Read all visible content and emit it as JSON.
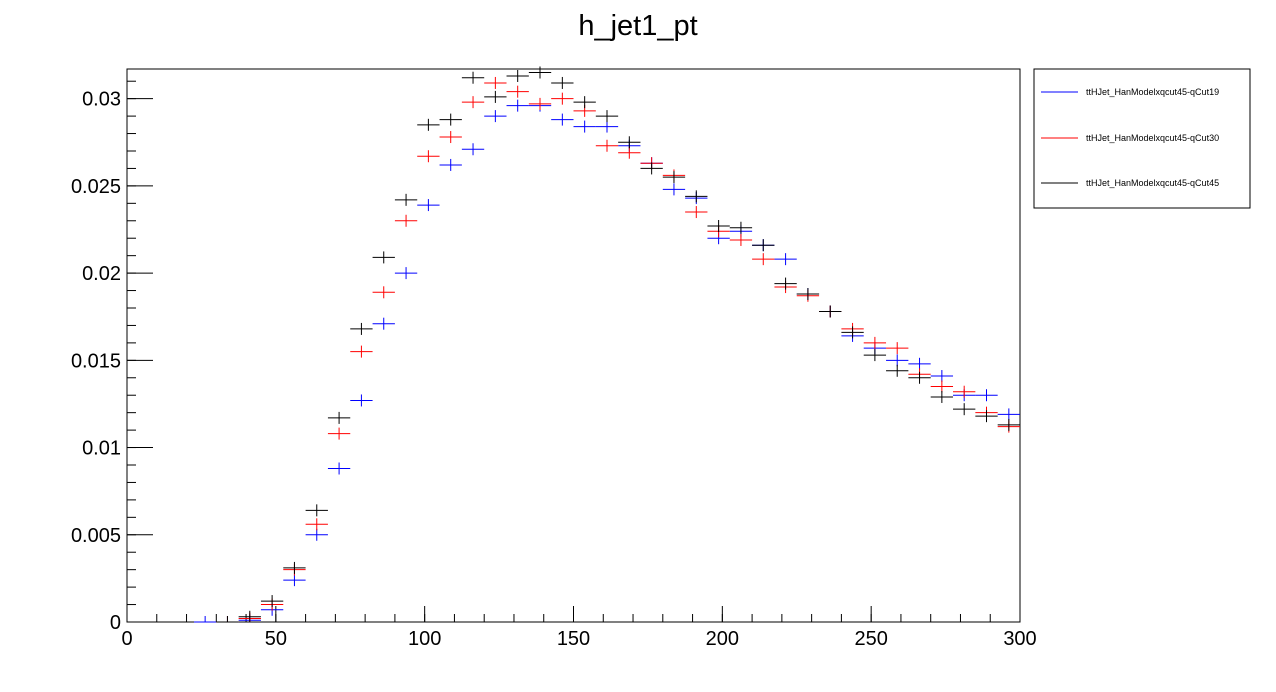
{
  "chart_data": {
    "type": "scatter",
    "title": "h_jet1_pt",
    "xlabel": "",
    "ylabel": "",
    "xlim": [
      0,
      300
    ],
    "ylim": [
      0,
      0.0317
    ],
    "x_tick_labels": [
      "0",
      "50",
      "100",
      "150",
      "200",
      "250",
      "300"
    ],
    "x_tick_values": [
      0,
      50,
      100,
      150,
      200,
      250,
      300
    ],
    "y_tick_labels": [
      "0",
      "0.005",
      "0.01",
      "0.015",
      "0.02",
      "0.025",
      "0.03"
    ],
    "y_tick_values": [
      0,
      0.005,
      0.01,
      0.015,
      0.02,
      0.025,
      0.03
    ],
    "bin_width": 7.5,
    "grid": false,
    "legend_position": "top-right, outside plot",
    "series": [
      {
        "name": "ttHJet_HanModelxqcut45-qCut19",
        "color": "#0000ff",
        "x": [
          26.25,
          33.75,
          41.25,
          48.75,
          56.25,
          63.75,
          71.25,
          78.75,
          86.25,
          93.75,
          101.25,
          108.75,
          116.25,
          123.75,
          131.25,
          138.75,
          146.25,
          153.75,
          161.25,
          168.75,
          176.25,
          183.75,
          191.25,
          198.75,
          206.25,
          213.75,
          221.25,
          228.75,
          236.25,
          243.75,
          251.25,
          258.75,
          266.25,
          273.75,
          281.25,
          288.75,
          296.25
        ],
        "y": [
          0.0,
          0.0,
          0.0001,
          0.0007,
          0.0024,
          0.005,
          0.0088,
          0.0127,
          0.0171,
          0.02,
          0.0239,
          0.0262,
          0.0271,
          0.029,
          0.0296,
          0.0296,
          0.0288,
          0.0284,
          0.0284,
          0.0273,
          0.0263,
          0.0248,
          0.0243,
          0.022,
          0.0224,
          0.0216,
          0.0208,
          0.0188,
          0.0178,
          0.0164,
          0.0157,
          0.015,
          0.0148,
          0.0141,
          0.013,
          0.013,
          0.0119
        ]
      },
      {
        "name": "ttHJet_HanModelxqcut45-qCut30",
        "color": "#ff0000",
        "x": [
          33.75,
          41.25,
          48.75,
          56.25,
          63.75,
          71.25,
          78.75,
          86.25,
          93.75,
          101.25,
          108.75,
          116.25,
          123.75,
          131.25,
          138.75,
          146.25,
          153.75,
          161.25,
          168.75,
          176.25,
          183.75,
          191.25,
          198.75,
          206.25,
          213.75,
          221.25,
          228.75,
          236.25,
          243.75,
          251.25,
          258.75,
          266.25,
          273.75,
          281.25,
          288.75,
          296.25
        ],
        "y": [
          0.0,
          0.0002,
          0.001,
          0.003,
          0.0056,
          0.0108,
          0.0155,
          0.0189,
          0.023,
          0.0267,
          0.0278,
          0.0298,
          0.0309,
          0.0304,
          0.0297,
          0.03,
          0.0293,
          0.0273,
          0.0269,
          0.0263,
          0.0256,
          0.0235,
          0.0224,
          0.0219,
          0.0208,
          0.0192,
          0.0187,
          0.0178,
          0.0168,
          0.016,
          0.0157,
          0.0142,
          0.0135,
          0.0132,
          0.012,
          0.0112
        ]
      },
      {
        "name": "ttHJet_HanModelxqcut45-qCut45",
        "color": "#000000",
        "x": [
          33.75,
          41.25,
          48.75,
          56.25,
          63.75,
          71.25,
          78.75,
          86.25,
          93.75,
          101.25,
          108.75,
          116.25,
          123.75,
          131.25,
          138.75,
          146.25,
          153.75,
          161.25,
          168.75,
          176.25,
          183.75,
          191.25,
          198.75,
          206.25,
          213.75,
          221.25,
          228.75,
          236.25,
          243.75,
          251.25,
          258.75,
          266.25,
          273.75,
          281.25,
          288.75,
          296.25
        ],
        "y": [
          0.0,
          0.0003,
          0.0012,
          0.0031,
          0.0064,
          0.0117,
          0.0168,
          0.0209,
          0.0242,
          0.0285,
          0.0288,
          0.0312,
          0.0301,
          0.0313,
          0.0315,
          0.0309,
          0.0298,
          0.029,
          0.0275,
          0.026,
          0.0255,
          0.0244,
          0.0227,
          0.0226,
          0.0216,
          0.0194,
          0.0188,
          0.0178,
          0.0166,
          0.0153,
          0.0144,
          0.014,
          0.0129,
          0.0122,
          0.0118,
          0.0113
        ]
      }
    ]
  }
}
